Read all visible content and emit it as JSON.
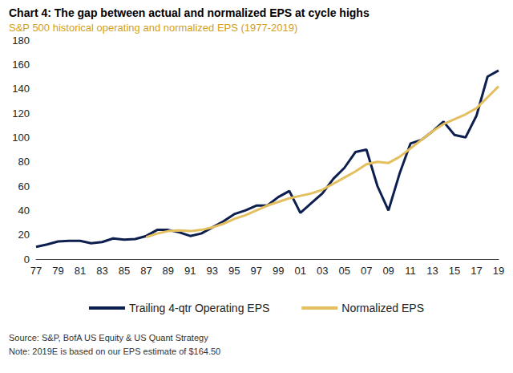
{
  "chart_data": {
    "type": "line",
    "title": "Chart 4: The gap between actual and normalized EPS at cycle highs",
    "subtitle": "S&P 500 historical operating and normalized EPS (1977-2019)",
    "notes": [
      "Source: S&P, BofA US Equity & US Quant Strategy",
      "Note: 2019E is based on our EPS estimate of $164.50"
    ],
    "categories": [
      "77",
      null,
      "79",
      null,
      "81",
      null,
      "83",
      null,
      "85",
      null,
      "87",
      null,
      "89",
      null,
      "91",
      null,
      "93",
      null,
      "95",
      null,
      "97",
      null,
      "99",
      null,
      "01",
      null,
      "03",
      null,
      "05",
      null,
      "07",
      null,
      "09",
      null,
      "11",
      null,
      "13",
      null,
      "15",
      null,
      "17",
      null,
      "19"
    ],
    "series": [
      {
        "name": "Trailing 4-qtr Operating EPS",
        "color": "#0d1f4f",
        "values": [
          10,
          12,
          14.5,
          15,
          15,
          13,
          14,
          17,
          16,
          16.5,
          19,
          24,
          24,
          22,
          19,
          21,
          26,
          31,
          37,
          40,
          44,
          44,
          51,
          56,
          38,
          46,
          54,
          66,
          75,
          88,
          90,
          60,
          40,
          70,
          95,
          98,
          105,
          113,
          102,
          100,
          118,
          150,
          155
        ]
      },
      {
        "name": "Normalized EPS",
        "color": "#e3bf5f",
        "values": [
          null,
          null,
          null,
          null,
          null,
          null,
          null,
          null,
          null,
          null,
          18,
          21,
          23,
          23.5,
          23,
          24,
          26,
          29,
          33,
          36,
          40,
          44,
          47,
          50,
          52,
          54,
          57,
          62,
          67,
          72,
          78,
          80,
          79,
          84,
          91,
          98,
          105,
          111,
          115,
          119,
          124,
          133,
          142
        ]
      }
    ],
    "ylim": [
      0,
      180
    ],
    "yticks": [
      0,
      20,
      40,
      60,
      80,
      100,
      120,
      140,
      160,
      180
    ],
    "grid": false,
    "legend": "bottom"
  }
}
